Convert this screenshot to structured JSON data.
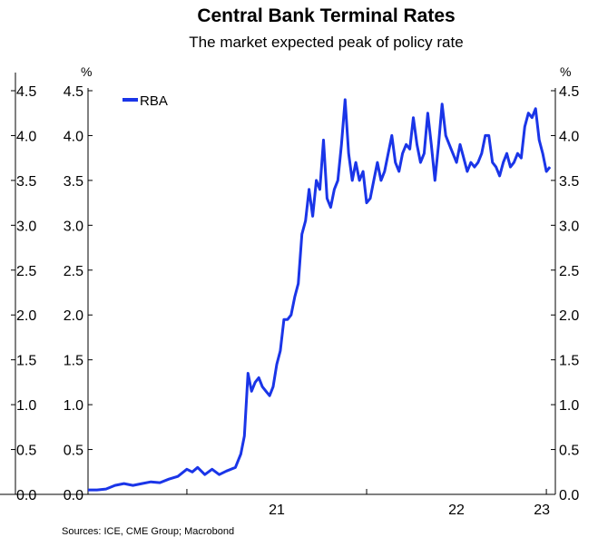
{
  "title": "Central Bank Terminal Rates",
  "subtitle": "The market expected peak of policy rate",
  "source": "Sources: ICE, CME Group; Macrobond",
  "unit_left": "%",
  "unit_right": "%",
  "colors": {
    "series": "#1a35e8",
    "axis": "#000000"
  },
  "chart_data": {
    "type": "line",
    "title": "Central Bank Terminal Rates",
    "subtitle": "The market expected peak of policy rate",
    "ylim": [
      0,
      4.5
    ],
    "yticks": [
      "0.0",
      "0.5",
      "1.0",
      "1.5",
      "2.0",
      "2.5",
      "3.0",
      "3.5",
      "4.0",
      "4.5"
    ],
    "xticks": [
      "21",
      "22",
      "23"
    ],
    "xlim": [
      2020.45,
      2023.05
    ],
    "legend": "top-left",
    "grid": false,
    "series": [
      {
        "name": "RBA",
        "x": [
          2020.45,
          2020.5,
          2020.55,
          2020.6,
          2020.65,
          2020.7,
          2020.75,
          2020.8,
          2020.85,
          2020.9,
          2020.95,
          2021.0,
          2021.03,
          2021.06,
          2021.1,
          2021.14,
          2021.18,
          2021.22,
          2021.27,
          2021.3,
          2021.32,
          2021.34,
          2021.36,
          2021.38,
          2021.4,
          2021.42,
          2021.44,
          2021.46,
          2021.48,
          2021.5,
          2021.52,
          2021.54,
          2021.56,
          2021.58,
          2021.6,
          2021.62,
          2021.64,
          2021.66,
          2021.68,
          2021.7,
          2021.72,
          2021.74,
          2021.76,
          2021.78,
          2021.8,
          2021.82,
          2021.84,
          2021.86,
          2021.88,
          2021.9,
          2021.92,
          2021.94,
          2021.96,
          2021.98,
          2022.0,
          2022.02,
          2022.04,
          2022.06,
          2022.08,
          2022.1,
          2022.12,
          2022.14,
          2022.16,
          2022.18,
          2022.2,
          2022.22,
          2022.24,
          2022.26,
          2022.28,
          2022.3,
          2022.32,
          2022.34,
          2022.36,
          2022.38,
          2022.4,
          2022.42,
          2022.44,
          2022.46,
          2022.48,
          2022.5,
          2022.52,
          2022.54,
          2022.56,
          2022.58,
          2022.6,
          2022.62,
          2022.64,
          2022.66,
          2022.68,
          2022.7,
          2022.72,
          2022.74,
          2022.76,
          2022.78,
          2022.8,
          2022.82,
          2022.84,
          2022.86,
          2022.88,
          2022.9,
          2022.92,
          2022.94,
          2022.96,
          2022.98,
          2023.0,
          2023.02
        ],
        "values": [
          0.05,
          0.05,
          0.06,
          0.1,
          0.12,
          0.1,
          0.12,
          0.14,
          0.13,
          0.17,
          0.2,
          0.28,
          0.25,
          0.3,
          0.22,
          0.28,
          0.22,
          0.26,
          0.3,
          0.45,
          0.65,
          1.35,
          1.15,
          1.25,
          1.3,
          1.2,
          1.15,
          1.1,
          1.2,
          1.45,
          1.6,
          1.95,
          1.95,
          2.0,
          2.2,
          2.35,
          2.9,
          3.05,
          3.4,
          3.1,
          3.5,
          3.4,
          3.95,
          3.3,
          3.2,
          3.4,
          3.5,
          3.9,
          4.4,
          3.8,
          3.5,
          3.7,
          3.5,
          3.6,
          3.25,
          3.3,
          3.5,
          3.7,
          3.5,
          3.6,
          3.8,
          4.0,
          3.7,
          3.6,
          3.8,
          3.9,
          3.85,
          4.2,
          3.9,
          3.7,
          3.8,
          4.25,
          3.9,
          3.5,
          3.9,
          4.35,
          4.0,
          3.9,
          3.8,
          3.7,
          3.9,
          3.75,
          3.6,
          3.7,
          3.65,
          3.7,
          3.8,
          4.0,
          4.0,
          3.7,
          3.65,
          3.55,
          3.7,
          3.8,
          3.65,
          3.7,
          3.8,
          3.75,
          4.1,
          4.25,
          4.2,
          4.3,
          3.95,
          3.8,
          3.6,
          3.65
        ]
      }
    ]
  }
}
